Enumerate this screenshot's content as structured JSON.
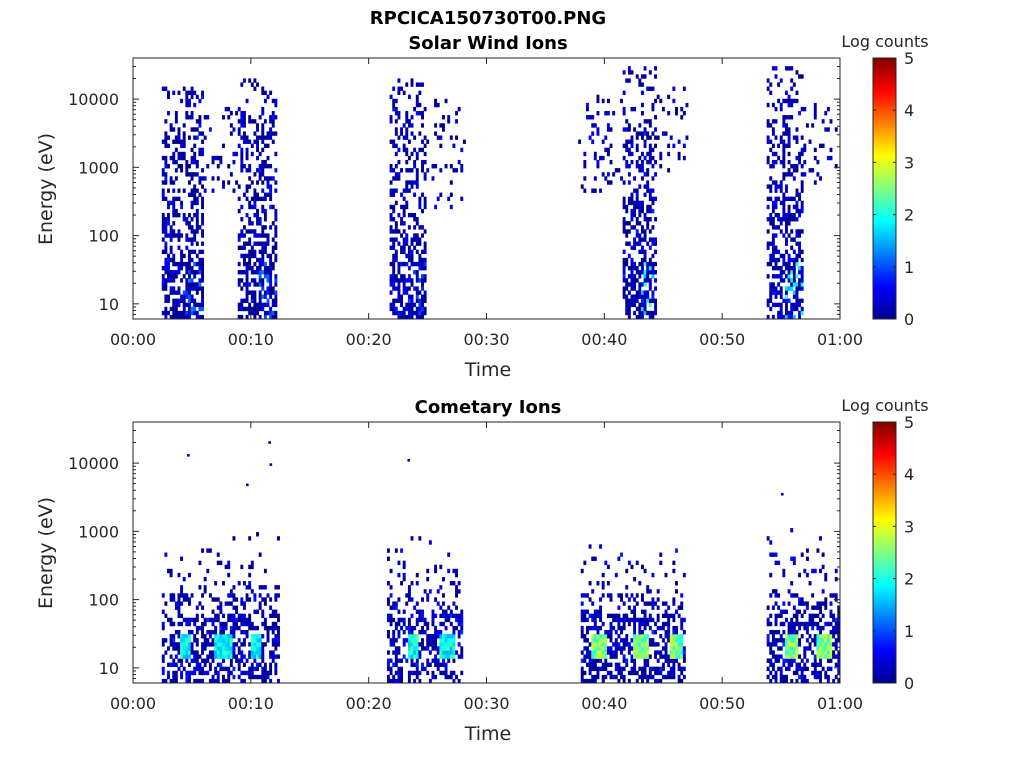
{
  "figure": {
    "filename_title": "RPCICA150730T00.PNG"
  },
  "chart_data": [
    {
      "type": "heatmap",
      "title": "Solar Wind Ions",
      "xlabel": "Time",
      "ylabel": "Energy (eV)",
      "x_ticks": [
        "00:00",
        "00:10",
        "00:20",
        "00:30",
        "00:40",
        "00:50",
        "01:00"
      ],
      "x_range_minutes": [
        0,
        60
      ],
      "y_ticks": [
        "10",
        "100",
        "1000",
        "10000"
      ],
      "y_tick_values": [
        10,
        100,
        1000,
        10000
      ],
      "y_scale": "log",
      "y_range": [
        6,
        40000
      ],
      "colorbar": {
        "label": "Log counts",
        "range": [
          0,
          5
        ],
        "ticks": [
          "0",
          "1",
          "2",
          "3",
          "4",
          "5"
        ],
        "colormap": "jet"
      },
      "grid": false,
      "bursts": [
        {
          "start_min": 2.5,
          "end_min": 6.0,
          "emax_eV": 15000,
          "peak_log_counts": 1.3
        },
        {
          "start_min": 6.0,
          "end_min": 9.0,
          "emax_eV": 8000,
          "emin_eV": 400,
          "peak_log_counts": 0.3
        },
        {
          "start_min": 9.0,
          "end_min": 12.2,
          "emax_eV": 20000,
          "peak_log_counts": 1.3
        },
        {
          "start_min": 21.8,
          "end_min": 25.0,
          "emax_eV": 20000,
          "peak_log_counts": 1.0
        },
        {
          "start_min": 25.0,
          "end_min": 28.2,
          "emax_eV": 10000,
          "emin_eV": 250,
          "peak_log_counts": 0.3
        },
        {
          "start_min": 37.8,
          "end_min": 41.5,
          "emax_eV": 12000,
          "emin_eV": 400,
          "peak_log_counts": 0.3
        },
        {
          "start_min": 41.5,
          "end_min": 44.5,
          "emax_eV": 30000,
          "peak_log_counts": 2.3
        },
        {
          "start_min": 44.5,
          "end_min": 47.2,
          "emax_eV": 15000,
          "emin_eV": 800,
          "peak_log_counts": 0.3
        },
        {
          "start_min": 53.8,
          "end_min": 57.0,
          "emax_eV": 30000,
          "peak_log_counts": 2.2
        },
        {
          "start_min": 57.0,
          "end_min": 60.0,
          "emax_eV": 12000,
          "emin_eV": 600,
          "peak_log_counts": 0.3
        }
      ]
    },
    {
      "type": "heatmap",
      "title": "Cometary Ions",
      "xlabel": "Time",
      "ylabel": "Energy (eV)",
      "x_ticks": [
        "00:00",
        "00:10",
        "00:20",
        "00:30",
        "00:40",
        "00:50",
        "01:00"
      ],
      "x_range_minutes": [
        0,
        60
      ],
      "y_ticks": [
        "10",
        "100",
        "1000",
        "10000"
      ],
      "y_tick_values": [
        10,
        100,
        1000,
        10000
      ],
      "y_scale": "log",
      "y_range": [
        6,
        40000
      ],
      "colorbar": {
        "label": "Log counts",
        "range": [
          0,
          5
        ],
        "ticks": [
          "0",
          "1",
          "2",
          "3",
          "4",
          "5"
        ],
        "colormap": "jet"
      },
      "grid": false,
      "bursts": [
        {
          "start_min": 2.5,
          "end_min": 12.5,
          "emax_eV": 1000,
          "peak_log_counts": 2.2,
          "hot_energy_eV": 20,
          "hot_intervals_min": [
            [
              4.0,
              5.0
            ],
            [
              7.0,
              8.4
            ],
            [
              10.0,
              11.0
            ]
          ]
        },
        {
          "start_min": 21.5,
          "end_min": 28.0,
          "emax_eV": 1300,
          "peak_log_counts": 2.3,
          "hot_energy_eV": 20,
          "hot_intervals_min": [
            [
              23.3,
              24.3
            ],
            [
              26.0,
              27.3
            ]
          ]
        },
        {
          "start_min": 38.0,
          "end_min": 47.0,
          "emax_eV": 900,
          "peak_log_counts": 3.0,
          "hot_energy_eV": 20,
          "hot_intervals_min": [
            [
              39.0,
              40.2
            ],
            [
              42.5,
              43.8
            ],
            [
              45.5,
              46.6
            ]
          ]
        },
        {
          "start_min": 53.8,
          "end_min": 60.0,
          "emax_eV": 1200,
          "peak_log_counts": 3.0,
          "hot_energy_eV": 20,
          "hot_intervals_min": [
            [
              55.3,
              56.5
            ],
            [
              58.0,
              59.3
            ]
          ]
        }
      ],
      "isolated_points": [
        {
          "t_min": 4.7,
          "energy_eV": 13000
        },
        {
          "t_min": 9.7,
          "energy_eV": 4800
        },
        {
          "t_min": 11.6,
          "energy_eV": 20000
        },
        {
          "t_min": 11.7,
          "energy_eV": 9500
        },
        {
          "t_min": 23.4,
          "energy_eV": 11000
        },
        {
          "t_min": 55.1,
          "energy_eV": 3500
        }
      ]
    }
  ]
}
